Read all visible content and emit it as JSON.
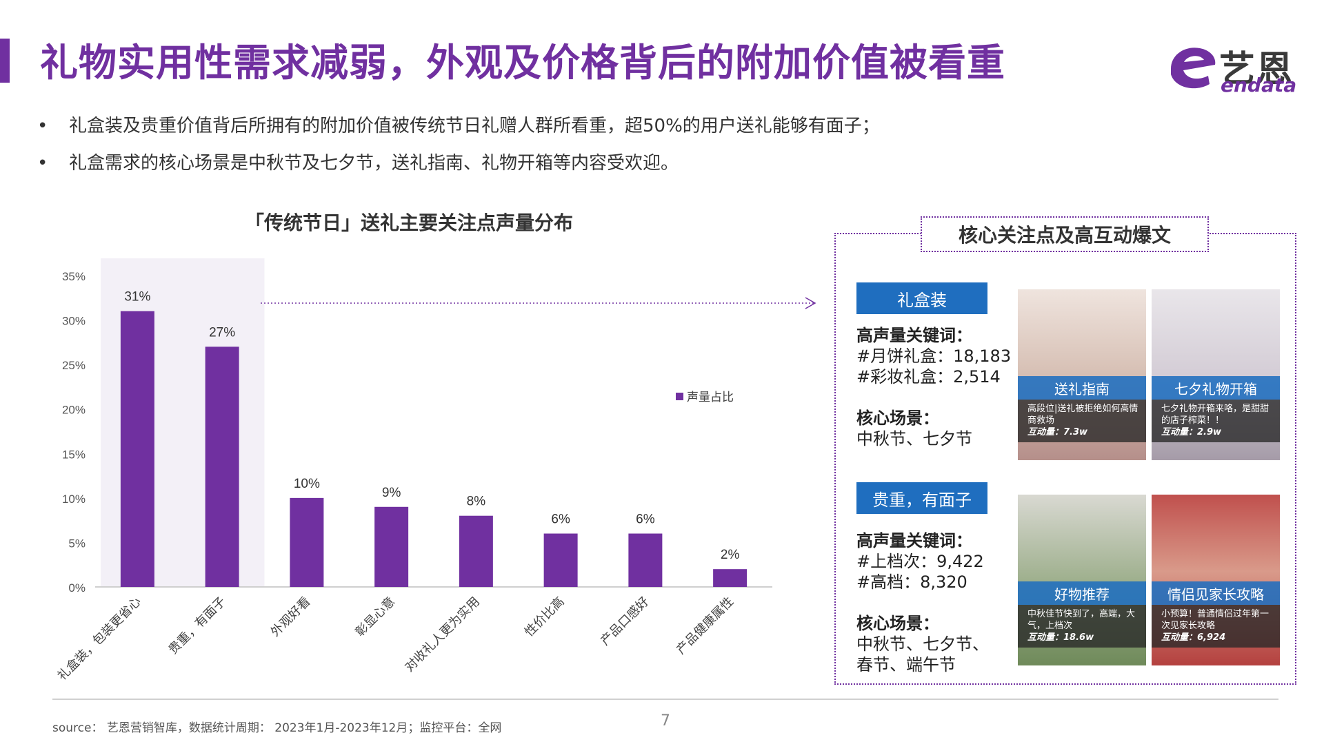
{
  "header": {
    "title": "礼物实用性需求减弱，外观及价格背后的附加价值被看重",
    "logo_cn": "艺恩",
    "logo_en": "endata"
  },
  "bullets": [
    "礼盒装及贵重价值背后所拥有的附加价值被传统节日礼赠人群所看重，超50%的用户送礼能够有面子；",
    "礼盒需求的核心场景是中秋节及七夕节，送礼指南、礼物开箱等内容受欢迎。"
  ],
  "bullet_glyph": "•",
  "chart_data": {
    "type": "bar",
    "title": "「传统节日」送礼主要关注点声量分布",
    "categories": [
      "礼盒装，包装更省心",
      "贵重，有面子",
      "外观好看",
      "彰显心意",
      "对收礼人更为实用",
      "性价比高",
      "产品口感好",
      "产品健康属性"
    ],
    "series": [
      {
        "name": "声量占比",
        "values": [
          0.31,
          0.27,
          0.1,
          0.09,
          0.08,
          0.06,
          0.06,
          0.02
        ]
      }
    ],
    "data_labels": [
      "31%",
      "27%",
      "10%",
      "9%",
      "8%",
      "6%",
      "6%",
      "2%"
    ],
    "y_ticks": [
      "0%",
      "5%",
      "10%",
      "15%",
      "20%",
      "25%",
      "30%",
      "35%"
    ],
    "ylim": [
      0,
      0.35
    ],
    "legend_position": "right",
    "highlighted_categories": [
      0,
      1
    ],
    "bar_color": "#7030A0",
    "highlight_color": "#F3F0F7"
  },
  "panel": {
    "title": "核心关注点及高互动爆文",
    "sections": [
      {
        "tag": "礼盒装",
        "keywords_title": "高声量关键词：",
        "keywords": [
          "#月饼礼盒：18,183",
          "#彩妆礼盒：2,514"
        ],
        "scene_title": "核心场景：",
        "scenes": [
          "中秋节、七夕节"
        ],
        "posts": [
          {
            "label": "送礼指南",
            "desc": "高段位|送礼被拒绝如何高情商救场",
            "engagement": "互动量：7.3w"
          },
          {
            "label": "七夕礼物开箱",
            "desc": "七夕礼物开箱来咯，是甜甜的店子榨菜！！",
            "engagement": "互动量：2.9w"
          }
        ]
      },
      {
        "tag": "贵重，有面子",
        "keywords_title": "高声量关键词：",
        "keywords": [
          "#上档次：9,422",
          "#高档：8,320"
        ],
        "scene_title": "核心场景：",
        "scenes": [
          "中秋节、七夕节、",
          "春节、端午节"
        ],
        "posts": [
          {
            "label": "好物推荐",
            "desc": "中秋佳节快到了，高端，大气，上档次",
            "engagement": "互动量：18.6w"
          },
          {
            "label": "情侣见家长攻略",
            "desc": "小预算！普通情侣过年第一次见家长攻略",
            "engagement": "互动量：6,924"
          }
        ]
      }
    ]
  },
  "footer": {
    "source": "source： 艺恩营销智库，数据统计周期： 2023年1月-2023年12月；监控平台：全网",
    "page_number": "7"
  },
  "colors": {
    "brand": "#7030A0",
    "tag_blue": "#1F6EBF"
  }
}
